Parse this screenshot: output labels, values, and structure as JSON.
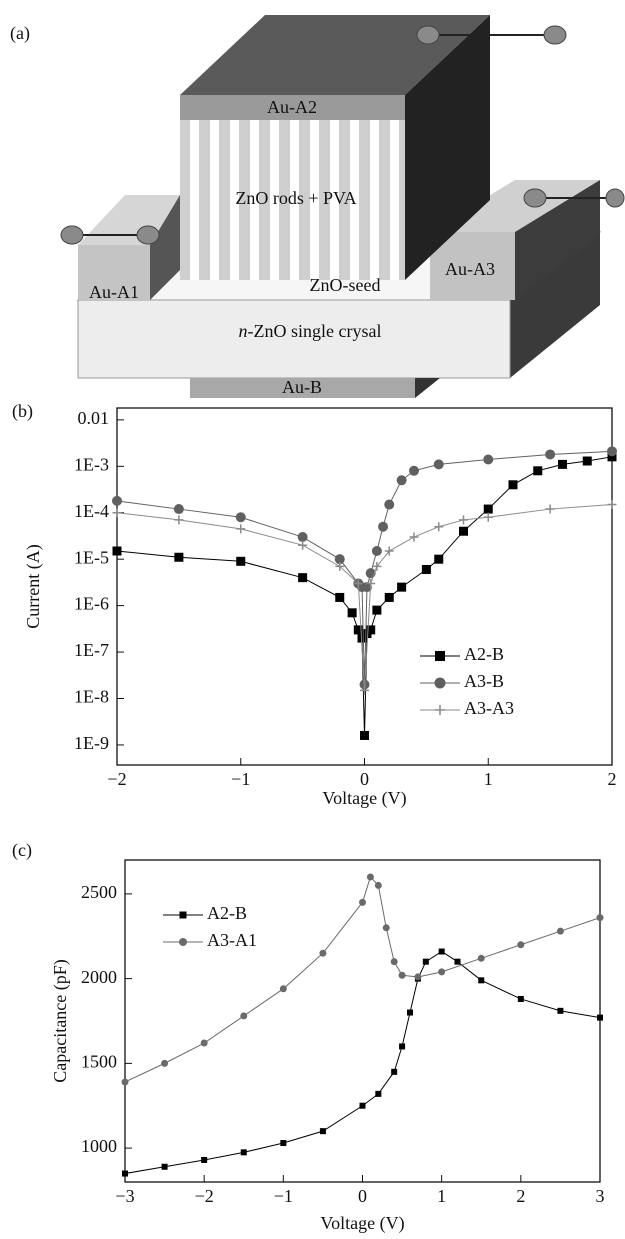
{
  "diagram": {
    "panel_label": "(a)",
    "top_electrode": "Au-A2",
    "rods": "ZnO rods + PVA",
    "left_electrode": "Au-A1",
    "seed": "ZnO-seed",
    "right_electrode": "Au-A3",
    "substrate": {
      "italic": "n",
      "text": "-ZnO single crysal"
    },
    "bottom_electrode": "Au-B"
  },
  "chart_data": [
    {
      "type": "line",
      "panel_label": "(b)",
      "xlabel": "Voltage (V)",
      "ylabel": "Current (A)",
      "yscale": "log",
      "legend": "lower right",
      "xlim": [
        -2,
        2
      ],
      "ylim": [
        3.7e-10,
        0.018
      ],
      "xticks": [
        {
          "value": -2,
          "label": "−2"
        },
        {
          "value": -1,
          "label": "−1"
        },
        0,
        1,
        2
      ],
      "yticks": [
        0.01,
        {
          "value": 0.001,
          "label": "1E-3"
        },
        {
          "value": 0.0001,
          "label": "1E-4"
        },
        {
          "value": 1e-05,
          "label": "1E-5"
        },
        {
          "value": 1e-06,
          "label": "1E-6"
        },
        {
          "value": 1e-07,
          "label": "1E-7"
        },
        {
          "value": 1e-08,
          "label": "1E-8"
        },
        {
          "value": 1e-09,
          "label": "1E-9"
        }
      ],
      "series": [
        {
          "name": "A2-B",
          "color": "#000000",
          "marker": "square",
          "x": [
            -2,
            -1.5,
            -1,
            -0.5,
            -0.2,
            -0.1,
            -0.05,
            -0.02,
            0,
            0.02,
            0.05,
            0.1,
            0.2,
            0.3,
            0.5,
            0.6,
            0.8,
            1.0,
            1.2,
            1.4,
            1.6,
            1.8,
            2
          ],
          "values": [
            1.5e-05,
            1.1e-05,
            9e-06,
            4e-06,
            1.5e-06,
            7e-07,
            3e-07,
            2e-07,
            1.6e-09,
            2.5e-07,
            3e-07,
            8e-07,
            1.5e-06,
            2.5e-06,
            6e-06,
            1e-05,
            4e-05,
            0.00012,
            0.0004,
            0.0008,
            0.0011,
            0.0013,
            0.0016
          ]
        },
        {
          "name": "A3-B",
          "color": "#606060",
          "marker": "circle",
          "x": [
            -2,
            -1.5,
            -1,
            -0.5,
            -0.2,
            -0.05,
            -0.02,
            0,
            0.02,
            0.05,
            0.1,
            0.15,
            0.2,
            0.3,
            0.4,
            0.6,
            1,
            1.5,
            2
          ],
          "values": [
            0.00018,
            0.00012,
            8e-05,
            3e-05,
            1e-05,
            3e-06,
            2.5e-06,
            2e-08,
            2.5e-06,
            5e-06,
            1.5e-05,
            5e-05,
            0.00015,
            0.0005,
            0.0008,
            0.0011,
            0.0014,
            0.0018,
            0.0021
          ]
        },
        {
          "name": "A3-A3",
          "color": "#8a8a8a",
          "marker": "plus",
          "x": [
            -2,
            -1.5,
            -1,
            -0.5,
            -0.2,
            -0.05,
            0,
            0.05,
            0.1,
            0.2,
            0.4,
            0.6,
            0.8,
            1,
            1.5,
            2
          ],
          "values": [
            0.0001,
            7e-05,
            4.5e-05,
            2e-05,
            7e-06,
            3e-06,
            1.5e-08,
            3e-06,
            7e-06,
            1.5e-05,
            3e-05,
            5e-05,
            7e-05,
            8e-05,
            0.00012,
            0.00015
          ]
        }
      ]
    },
    {
      "type": "line",
      "panel_label": "(c)",
      "xlabel": "Voltage (V)",
      "ylabel": "Capacitance (pF)",
      "yscale": "linear",
      "legend": "upper left",
      "xlim": [
        -3,
        3
      ],
      "ylim": [
        800,
        2700
      ],
      "xticks": [
        {
          "value": -3,
          "label": "−3"
        },
        {
          "value": -2,
          "label": "−2"
        },
        {
          "value": -1,
          "label": "−1"
        },
        0,
        1,
        2,
        3
      ],
      "yticks": [
        1000,
        1500,
        2000,
        2500
      ],
      "series": [
        {
          "name": "A2-B",
          "color": "#000000",
          "marker": "square",
          "x": [
            -3,
            -2.5,
            -2,
            -1.5,
            -1,
            -0.5,
            0,
            0.2,
            0.4,
            0.5,
            0.6,
            0.7,
            0.8,
            1.0,
            1.2,
            1.5,
            2,
            2.5,
            3
          ],
          "values": [
            850,
            890,
            930,
            975,
            1030,
            1100,
            1250,
            1320,
            1450,
            1600,
            1800,
            2000,
            2100,
            2160,
            2100,
            1990,
            1880,
            1810,
            1770
          ]
        },
        {
          "name": "A3-A1",
          "color": "#6a6a6a",
          "marker": "circle",
          "x": [
            -3,
            -2.5,
            -2,
            -1.5,
            -1,
            -0.5,
            0,
            0.1,
            0.2,
            0.3,
            0.4,
            0.5,
            0.7,
            1,
            1.5,
            2,
            2.5,
            3
          ],
          "values": [
            1390,
            1500,
            1620,
            1780,
            1940,
            2150,
            2450,
            2600,
            2550,
            2300,
            2100,
            2020,
            2010,
            2040,
            2120,
            2200,
            2280,
            2360
          ]
        }
      ]
    }
  ]
}
